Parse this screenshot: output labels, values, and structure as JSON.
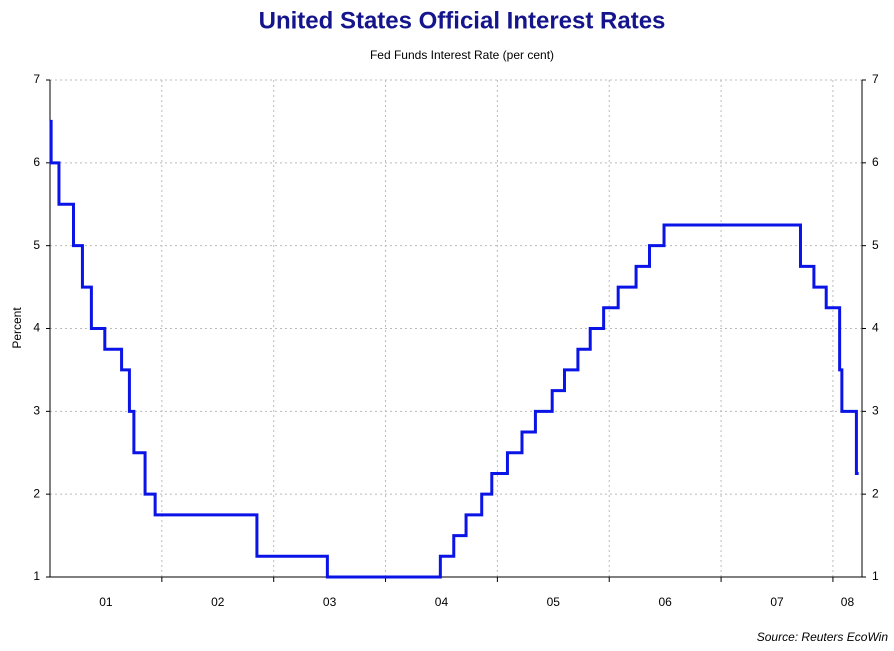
{
  "chart_data": {
    "type": "line",
    "title": "United States Official Interest Rates",
    "subtitle": "Fed Funds Interest Rate (per cent)",
    "ylabel": "Percent",
    "source": "Source: Reuters EcoWin",
    "step": true,
    "xlim": [
      2001.0,
      2008.26
    ],
    "xticks": [
      {
        "value": 2001.5,
        "label": "01"
      },
      {
        "value": 2002.5,
        "label": "02"
      },
      {
        "value": 2003.5,
        "label": "03"
      },
      {
        "value": 2004.5,
        "label": "04"
      },
      {
        "value": 2005.5,
        "label": "05"
      },
      {
        "value": 2006.5,
        "label": "06"
      },
      {
        "value": 2007.5,
        "label": "07"
      },
      {
        "value": 2008.13,
        "label": "08"
      }
    ],
    "xgrid": [
      2002,
      2003,
      2004,
      2005,
      2006,
      2007,
      2008
    ],
    "ylim": [
      1,
      7
    ],
    "yticks": [
      1,
      2,
      3,
      4,
      5,
      6,
      7
    ],
    "grid": true,
    "series": [
      {
        "name": "Fed Funds Interest Rate",
        "color": "#0a14e6",
        "x": [
          2001.0,
          2001.01,
          2001.08,
          2001.21,
          2001.29,
          2001.37,
          2001.49,
          2001.64,
          2001.71,
          2001.75,
          2001.85,
          2001.94,
          2002.85,
          2003.48,
          2004.49,
          2004.61,
          2004.72,
          2004.86,
          2004.95,
          2005.09,
          2005.22,
          2005.34,
          2005.49,
          2005.6,
          2005.72,
          2005.83,
          2005.95,
          2006.08,
          2006.24,
          2006.36,
          2006.49,
          2007.71,
          2007.83,
          2007.94,
          2008.06,
          2008.08,
          2008.21,
          2008.23
        ],
        "values": [
          6.5,
          6.0,
          5.5,
          5.0,
          4.5,
          4.0,
          3.75,
          3.5,
          3.0,
          2.5,
          2.0,
          1.75,
          1.25,
          1.0,
          1.25,
          1.5,
          1.75,
          2.0,
          2.25,
          2.5,
          2.75,
          3.0,
          3.25,
          3.5,
          3.75,
          4.0,
          4.25,
          4.5,
          4.75,
          5.0,
          5.25,
          4.75,
          4.5,
          4.25,
          3.5,
          3.0,
          2.25,
          2.25
        ]
      }
    ]
  }
}
